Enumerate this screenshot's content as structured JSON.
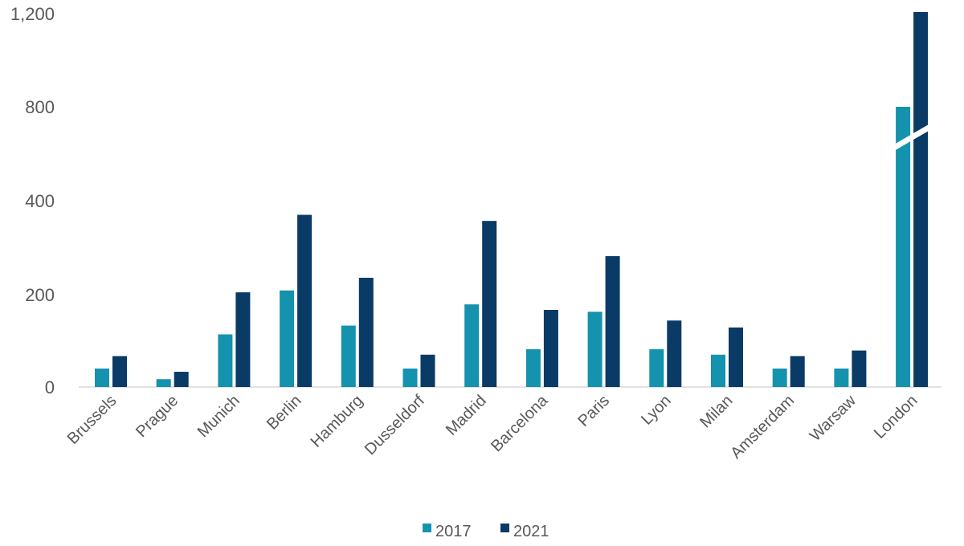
{
  "chart_data": {
    "type": "bar",
    "title": "",
    "xlabel": "",
    "ylabel": "",
    "categories": [
      "Brussels",
      "Prague",
      "Munich",
      "Berlin",
      "Hamburg",
      "Dusseldorf",
      "Madrid",
      "Barcelona",
      "Paris",
      "Lyon",
      "Milan",
      "Amsterdam",
      "Warsaw",
      "London"
    ],
    "series": [
      {
        "name": "2017",
        "color": "#1592ad",
        "values": [
          40,
          17,
          114,
          209,
          133,
          40,
          179,
          82,
          163,
          82,
          70,
          40,
          40,
          800
        ]
      },
      {
        "name": "2021",
        "color": "#0a3a66",
        "values": [
          67,
          33,
          205,
          370,
          236,
          70,
          357,
          167,
          282,
          144,
          129,
          67,
          79,
          1200
        ]
      }
    ],
    "y_ticks": [
      0,
      200,
      400,
      800,
      1200
    ],
    "y_tick_labels": [
      "0",
      "200",
      "400",
      "800",
      "1,200"
    ],
    "y_scale": "non-linear (piecewise, evenly spaced ticks)",
    "ylim": [
      0,
      1200
    ],
    "axis_break_category": "London",
    "grid": false,
    "legend_position": "bottom"
  }
}
